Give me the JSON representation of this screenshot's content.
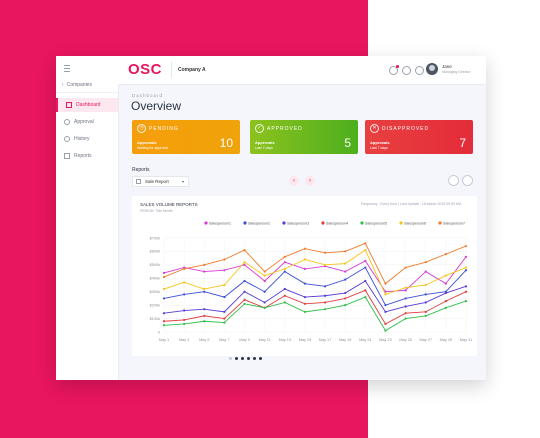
{
  "sidebar": {
    "back_label": "Companies",
    "items": [
      {
        "label": "Dashboard",
        "active": true,
        "icon": "grid-icon"
      },
      {
        "label": "Approval",
        "active": false,
        "icon": "check-circle-icon"
      },
      {
        "label": "History",
        "active": false,
        "icon": "history-icon"
      },
      {
        "label": "Reports",
        "active": false,
        "icon": "document-icon"
      }
    ]
  },
  "header": {
    "logo": "OSC",
    "company": "Company A",
    "user_name": "Jane",
    "user_role": "Managing Director",
    "icons": [
      "bell-icon",
      "mail-icon",
      "settings-icon"
    ]
  },
  "page": {
    "breadcrumb": "Dashboard",
    "title": "Overview"
  },
  "cards": [
    {
      "label": "PENDING",
      "sub": "Approvals",
      "sub2": "Waiting for approval",
      "value": "10",
      "color_from": "#f59e0b",
      "color_to": "#f0a30a"
    },
    {
      "label": "APPROVED",
      "sub": "Approvals",
      "sub2": "Last 7 days",
      "value": "5",
      "color_from": "#8dc21f",
      "color_to": "#4caf1c"
    },
    {
      "label": "DISAPPROVED",
      "sub": "Approvals",
      "sub2": "Last 7 days",
      "value": "7",
      "color_from": "#e84040",
      "color_to": "#e42c3a"
    }
  ],
  "reports": {
    "label": "Reports",
    "selected": "Sale Report"
  },
  "chart_data": {
    "type": "line",
    "title": "SALES VOLUME REPORTS",
    "subtitle": "PERIOD: This Month",
    "meta": "Frequency : Every hour | Last Update : 18 March 2019 09:00 AM",
    "categories": [
      "May 1",
      "May 3",
      "May 5",
      "May 7",
      "May 9",
      "May 11",
      "May 13",
      "May 15",
      "May 17",
      "May 19",
      "May 21",
      "May 23",
      "May 25",
      "May 27",
      "May 29",
      "May 31"
    ],
    "ylim": [
      0,
      700
    ],
    "yticks": [
      "0",
      "$100k",
      "$200k",
      "$300k",
      "$400k",
      "$500k",
      "$600k",
      "$700k"
    ],
    "series": [
      {
        "name": "Salesperson1",
        "color": "#d63bd6",
        "values": [
          440,
          480,
          450,
          460,
          500,
          380,
          520,
          470,
          490,
          450,
          530,
          300,
          310,
          450,
          360,
          560
        ]
      },
      {
        "name": "Salesperson2",
        "color": "#3b4ed6",
        "values": [
          250,
          280,
          300,
          260,
          380,
          300,
          450,
          360,
          340,
          390,
          480,
          200,
          250,
          280,
          300,
          460
        ]
      },
      {
        "name": "Salesperson3",
        "color": "#5a3bd6",
        "values": [
          140,
          160,
          170,
          150,
          300,
          220,
          320,
          260,
          270,
          290,
          380,
          150,
          190,
          220,
          290,
          340
        ]
      },
      {
        "name": "Salesperson4",
        "color": "#e03c3c",
        "values": [
          80,
          90,
          120,
          100,
          240,
          180,
          270,
          210,
          220,
          250,
          310,
          60,
          140,
          150,
          230,
          300
        ]
      },
      {
        "name": "Salesperson5",
        "color": "#2fbf4a",
        "values": [
          50,
          60,
          80,
          70,
          210,
          180,
          220,
          150,
          170,
          200,
          260,
          10,
          100,
          120,
          180,
          230
        ]
      },
      {
        "name": "Salesperson6",
        "color": "#f5c518",
        "values": [
          320,
          370,
          320,
          350,
          520,
          420,
          470,
          540,
          500,
          510,
          610,
          280,
          330,
          350,
          420,
          480
        ]
      },
      {
        "name": "Salesperson7",
        "color": "#f07a2a",
        "values": [
          410,
          470,
          500,
          540,
          610,
          450,
          560,
          620,
          590,
          600,
          660,
          360,
          480,
          520,
          580,
          640
        ]
      }
    ]
  },
  "pagination": {
    "count": 6,
    "active": 0
  }
}
